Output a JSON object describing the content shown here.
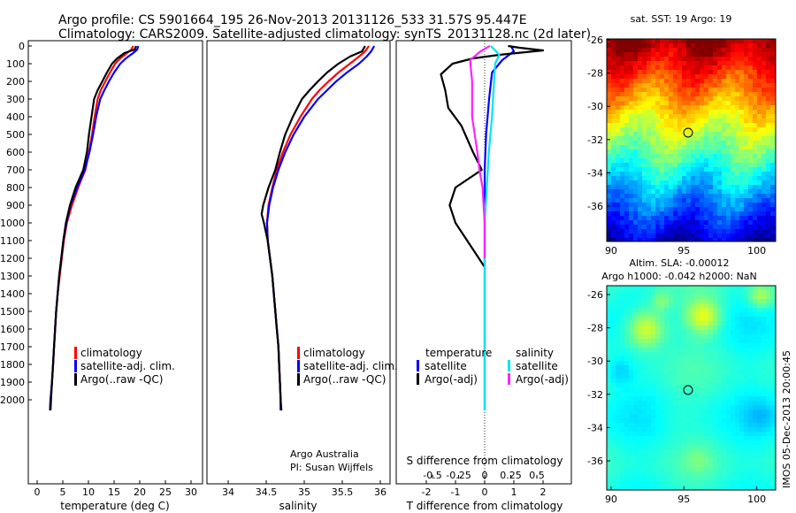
{
  "header": {
    "line1": "Argo profile: CS 5901664_195 26-Nov-2013 20131126_533 31.57S 95.447E",
    "line2": "Climatology: CARS2009. Satellite-adjusted climatology: synTS_20131128.nc (2d later)"
  },
  "colors": {
    "climatology": "#ff0000",
    "satellite": "#0000ff",
    "argo": "#000000",
    "salinity_satellite": "#00e5ee",
    "salinity_argo": "#ff22ff"
  },
  "chart_data": [
    {
      "type": "line",
      "title": "",
      "xlabel": "temperature (deg C)",
      "ylabel": "",
      "xlim": [
        -2,
        31
      ],
      "ylim": [
        0,
        2080
      ],
      "y_inverted": true,
      "xticks": [
        "0",
        "5",
        "10",
        "15",
        "20",
        "25",
        "30"
      ],
      "yticks": [
        "0",
        "100",
        "200",
        "300",
        "400",
        "500",
        "600",
        "700",
        "800",
        "900",
        "1000",
        "1100",
        "1200",
        "1300",
        "1400",
        "1500",
        "1600",
        "1700",
        "1800",
        "1900",
        "2000"
      ],
      "legend": {
        "placement": "bottom-center",
        "entries": [
          "climatology",
          "satellite-adj. clim.",
          "Argo(..raw -QC)"
        ]
      },
      "series": [
        {
          "name": "climatology",
          "points": [
            [
              18.7,
              0
            ],
            [
              18.4,
              20
            ],
            [
              17.5,
              40
            ],
            [
              16.2,
              70
            ],
            [
              15.2,
              100
            ],
            [
              14.2,
              150
            ],
            [
              13.3,
              200
            ],
            [
              12.4,
              250
            ],
            [
              11.8,
              300
            ],
            [
              11.2,
              400
            ],
            [
              10.7,
              500
            ],
            [
              10.1,
              600
            ],
            [
              9.4,
              700
            ],
            [
              8.0,
              800
            ],
            [
              6.8,
              900
            ],
            [
              5.8,
              1000
            ],
            [
              5.2,
              1100
            ],
            [
              4.8,
              1200
            ],
            [
              4.4,
              1300
            ],
            [
              4.0,
              1400
            ],
            [
              3.7,
              1500
            ],
            [
              3.5,
              1600
            ],
            [
              3.3,
              1700
            ],
            [
              3.1,
              1800
            ],
            [
              2.9,
              1900
            ],
            [
              2.6,
              2000
            ],
            [
              2.5,
              2060
            ]
          ]
        },
        {
          "name": "satellite-adj. clim.",
          "points": [
            [
              19.7,
              0
            ],
            [
              19.5,
              20
            ],
            [
              18.7,
              40
            ],
            [
              17.3,
              70
            ],
            [
              16.2,
              100
            ],
            [
              15.0,
              150
            ],
            [
              14.0,
              200
            ],
            [
              13.1,
              250
            ],
            [
              12.3,
              300
            ],
            [
              11.5,
              400
            ],
            [
              10.9,
              500
            ],
            [
              10.2,
              600
            ],
            [
              9.3,
              700
            ],
            [
              7.8,
              800
            ],
            [
              6.5,
              900
            ],
            [
              5.7,
              1000
            ],
            [
              5.1,
              1100
            ],
            [
              4.7,
              1200
            ],
            [
              4.3,
              1300
            ],
            [
              4.0,
              1400
            ],
            [
              3.7,
              1500
            ],
            [
              3.5,
              1600
            ],
            [
              3.3,
              1700
            ],
            [
              3.1,
              1800
            ],
            [
              2.9,
              1900
            ],
            [
              2.6,
              2000
            ],
            [
              2.5,
              2060
            ]
          ]
        },
        {
          "name": "Argo(..raw -QC)",
          "points": [
            [
              19.3,
              0
            ],
            [
              19.0,
              20
            ],
            [
              17.0,
              40
            ],
            [
              15.6,
              70
            ],
            [
              14.6,
              100
            ],
            [
              13.6,
              150
            ],
            [
              12.7,
              200
            ],
            [
              11.8,
              250
            ],
            [
              11.1,
              300
            ],
            [
              10.6,
              400
            ],
            [
              10.1,
              500
            ],
            [
              9.7,
              600
            ],
            [
              9.0,
              700
            ],
            [
              7.5,
              800
            ],
            [
              6.4,
              900
            ],
            [
              5.6,
              1000
            ],
            [
              5.1,
              1100
            ],
            [
              4.7,
              1200
            ],
            [
              4.3,
              1300
            ],
            [
              4.0,
              1400
            ],
            [
              3.7,
              1500
            ],
            [
              3.5,
              1600
            ],
            [
              3.3,
              1700
            ],
            [
              3.1,
              1800
            ],
            [
              2.9,
              1900
            ],
            [
              2.7,
              2000
            ],
            [
              2.6,
              2060
            ]
          ]
        }
      ]
    },
    {
      "type": "line",
      "title": "",
      "xlabel": "salinity",
      "ylabel": "",
      "xlim": [
        33.6,
        36.1
      ],
      "ylim": [
        0,
        2080
      ],
      "y_inverted": true,
      "xticks": [
        "34",
        "34.5",
        "35",
        "35.5",
        "36"
      ],
      "legend": {
        "placement": "bottom-right",
        "entries": [
          "climatology",
          "satellite-adj. clim.",
          "Argo(..raw -QC)"
        ]
      },
      "annotations": [
        "Argo Australia",
        "PI: Susan Wijffels"
      ],
      "series": [
        {
          "name": "climatology",
          "points": [
            [
              35.85,
              0
            ],
            [
              35.8,
              30
            ],
            [
              35.72,
              60
            ],
            [
              35.6,
              100
            ],
            [
              35.45,
              150
            ],
            [
              35.32,
              200
            ],
            [
              35.2,
              250
            ],
            [
              35.1,
              300
            ],
            [
              34.95,
              400
            ],
            [
              34.82,
              500
            ],
            [
              34.72,
              600
            ],
            [
              34.64,
              700
            ],
            [
              34.58,
              800
            ],
            [
              34.53,
              900
            ],
            [
              34.51,
              1000
            ],
            [
              34.52,
              1100
            ],
            [
              34.55,
              1200
            ],
            [
              34.58,
              1300
            ],
            [
              34.6,
              1400
            ],
            [
              34.62,
              1500
            ],
            [
              34.64,
              1600
            ],
            [
              34.66,
              1700
            ],
            [
              34.67,
              1800
            ],
            [
              34.68,
              1900
            ],
            [
              34.69,
              2000
            ],
            [
              34.69,
              2060
            ]
          ]
        },
        {
          "name": "satellite-adj. clim.",
          "points": [
            [
              35.92,
              0
            ],
            [
              35.88,
              30
            ],
            [
              35.82,
              60
            ],
            [
              35.72,
              100
            ],
            [
              35.56,
              150
            ],
            [
              35.42,
              200
            ],
            [
              35.3,
              250
            ],
            [
              35.18,
              300
            ],
            [
              35.0,
              400
            ],
            [
              34.86,
              500
            ],
            [
              34.75,
              600
            ],
            [
              34.66,
              700
            ],
            [
              34.59,
              800
            ],
            [
              34.54,
              900
            ],
            [
              34.51,
              1000
            ],
            [
              34.52,
              1100
            ],
            [
              34.55,
              1200
            ],
            [
              34.58,
              1300
            ],
            [
              34.6,
              1400
            ],
            [
              34.62,
              1500
            ],
            [
              34.64,
              1600
            ],
            [
              34.66,
              1700
            ],
            [
              34.67,
              1800
            ],
            [
              34.68,
              1900
            ],
            [
              34.69,
              2000
            ],
            [
              34.69,
              2060
            ]
          ]
        },
        {
          "name": "Argo(..raw -QC)",
          "points": [
            [
              35.8,
              0
            ],
            [
              35.76,
              30
            ],
            [
              35.6,
              60
            ],
            [
              35.45,
              100
            ],
            [
              35.3,
              150
            ],
            [
              35.18,
              200
            ],
            [
              35.07,
              250
            ],
            [
              34.97,
              300
            ],
            [
              34.85,
              400
            ],
            [
              34.75,
              500
            ],
            [
              34.68,
              600
            ],
            [
              34.62,
              700
            ],
            [
              34.53,
              800
            ],
            [
              34.46,
              900
            ],
            [
              34.44,
              950
            ],
            [
              34.47,
              1000
            ],
            [
              34.52,
              1100
            ],
            [
              34.55,
              1200
            ],
            [
              34.58,
              1300
            ],
            [
              34.6,
              1400
            ],
            [
              34.62,
              1500
            ],
            [
              34.64,
              1600
            ],
            [
              34.66,
              1700
            ],
            [
              34.67,
              1800
            ],
            [
              34.68,
              1900
            ],
            [
              34.69,
              2000
            ],
            [
              34.7,
              2060
            ]
          ]
        }
      ]
    },
    {
      "type": "line",
      "title": "",
      "xlabel": "T difference from climatology",
      "xlabel_top": "S difference from climatology",
      "ylabel": "",
      "xlim": [
        -2.5,
        3
      ],
      "ylim": [
        0,
        2080
      ],
      "y_inverted": true,
      "xticks": [
        "-2",
        "-1",
        "0",
        "1",
        "2"
      ],
      "xticks_top": [
        "-0.5",
        "-0.25",
        "0",
        "0.25",
        "0.5"
      ],
      "legend": {
        "placement": "bottom",
        "entries": [
          "temperature",
          "satellite",
          "Argo(-adj)",
          "salinity",
          "satellite",
          "Argo(-adj)"
        ]
      },
      "series": [
        {
          "name": "temperature satellite",
          "points": [
            [
              0.9,
              0
            ],
            [
              1.0,
              30
            ],
            [
              0.6,
              80
            ],
            [
              0.25,
              150
            ],
            [
              0.15,
              300
            ],
            [
              0.05,
              500
            ],
            [
              0,
              700
            ],
            [
              0,
              900
            ],
            [
              0,
              1200
            ],
            [
              0,
              1600
            ],
            [
              0,
              2000
            ],
            [
              0,
              2060
            ]
          ]
        },
        {
          "name": "temperature Argo(-adj)",
          "points": [
            [
              0.8,
              0
            ],
            [
              1.2,
              10
            ],
            [
              2.0,
              25
            ],
            [
              0.5,
              50
            ],
            [
              -0.4,
              70
            ],
            [
              -1.1,
              100
            ],
            [
              -1.5,
              160
            ],
            [
              -1.35,
              250
            ],
            [
              -1.25,
              350
            ],
            [
              -0.8,
              450
            ],
            [
              -0.4,
              600
            ],
            [
              -0.1,
              700
            ],
            [
              -1.0,
              800
            ],
            [
              -1.2,
              900
            ],
            [
              -1.0,
              1000
            ],
            [
              -0.6,
              1100
            ],
            [
              -0.2,
              1200
            ],
            [
              0,
              1250
            ]
          ]
        },
        {
          "name": "salinity satellite",
          "points": [
            [
              0.06,
              0
            ],
            [
              0.1,
              25
            ],
            [
              0.14,
              50
            ],
            [
              0.1,
              100
            ],
            [
              0.09,
              200
            ],
            [
              0.07,
              400
            ],
            [
              0.04,
              600
            ],
            [
              0.02,
              800
            ],
            [
              0,
              1000
            ],
            [
              0,
              1500
            ],
            [
              0,
              2060
            ]
          ]
        },
        {
          "name": "salinity Argo(-adj)",
          "points": [
            [
              0.05,
              0
            ],
            [
              -0.04,
              30
            ],
            [
              -0.14,
              80
            ],
            [
              -0.12,
              200
            ],
            [
              -0.12,
              400
            ],
            [
              -0.07,
              600
            ],
            [
              -0.05,
              700
            ],
            [
              -0.02,
              800
            ],
            [
              -0.01,
              900
            ],
            [
              0,
              1000
            ],
            [
              0,
              1200
            ]
          ]
        }
      ]
    },
    {
      "type": "heatmap",
      "title": "sat. SST: 19 Argo: 19",
      "xlim": [
        89.7,
        101.3
      ],
      "ylim": [
        -37.8,
        -25.7
      ],
      "xticks": [
        "90",
        "95",
        "100"
      ],
      "yticks": [
        "-26",
        "-28",
        "-30",
        "-32",
        "-34",
        "-36"
      ],
      "marker": {
        "lon": 95.447,
        "lat": -31.57
      }
    },
    {
      "type": "heatmap",
      "title": "Altim. SLA: -0.00012",
      "subtitle": "Argo h1000: -0.042 h2000: NaN",
      "xlim": [
        89.7,
        101.3
      ],
      "ylim": [
        -37.3,
        -25.5
      ],
      "xticks": [
        "90",
        "95",
        "100"
      ],
      "yticks": [
        "-26",
        "-28",
        "-30",
        "-32",
        "-34",
        "-36"
      ],
      "marker": {
        "lon": 95.447,
        "lat": -31.57
      },
      "side_text": "IMOS 05-Dec-2013 20:00:45"
    }
  ]
}
